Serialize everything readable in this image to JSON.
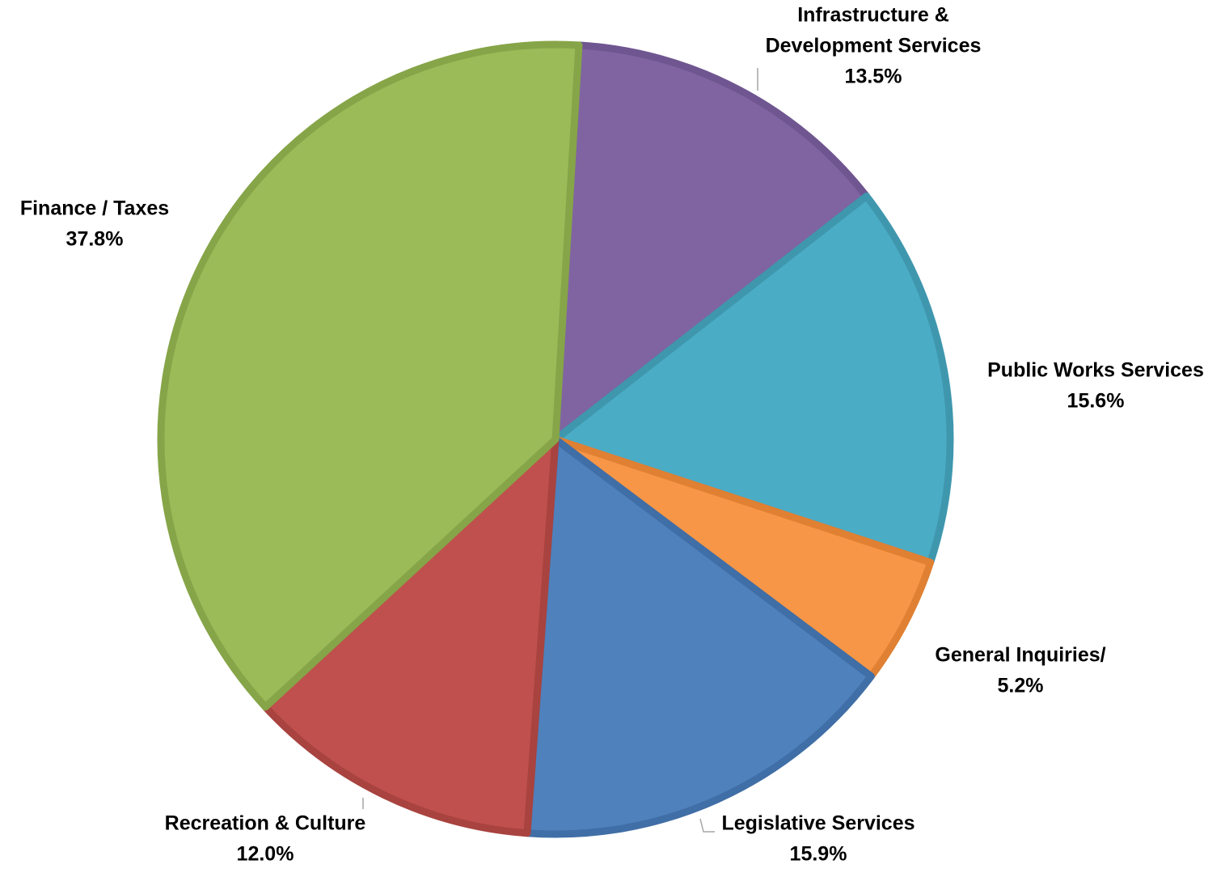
{
  "chart_data": {
    "type": "pie",
    "title": "",
    "start_angle_deg": 3.4,
    "direction": "clockwise",
    "slices": [
      {
        "label_lines": [
          "Infrastructure &",
          "Development Services"
        ],
        "value": 13.5,
        "percent_label": "13.5%",
        "color": "#8064a2",
        "border": "#6f5690"
      },
      {
        "label_lines": [
          "Public Works Services"
        ],
        "value": 15.6,
        "percent_label": "15.6%",
        "color": "#4bacc6",
        "border": "#3f97ae"
      },
      {
        "label_lines": [
          "General Inquiries/"
        ],
        "value": 5.2,
        "percent_label": "5.2%",
        "color": "#f79646",
        "border": "#df8033"
      },
      {
        "label_lines": [
          "Legislative Services"
        ],
        "value": 15.9,
        "percent_label": "15.9%",
        "color": "#4f81bd",
        "border": "#406ea6"
      },
      {
        "label_lines": [
          "Recreation & Culture"
        ],
        "value": 12.0,
        "percent_label": "12.0%",
        "color": "#c0504d",
        "border": "#a8433f"
      },
      {
        "label_lines": [
          "Finance / Taxes"
        ],
        "value": 37.8,
        "percent_label": "37.8%",
        "color": "#9bbb59",
        "border": "#86a548"
      }
    ]
  }
}
